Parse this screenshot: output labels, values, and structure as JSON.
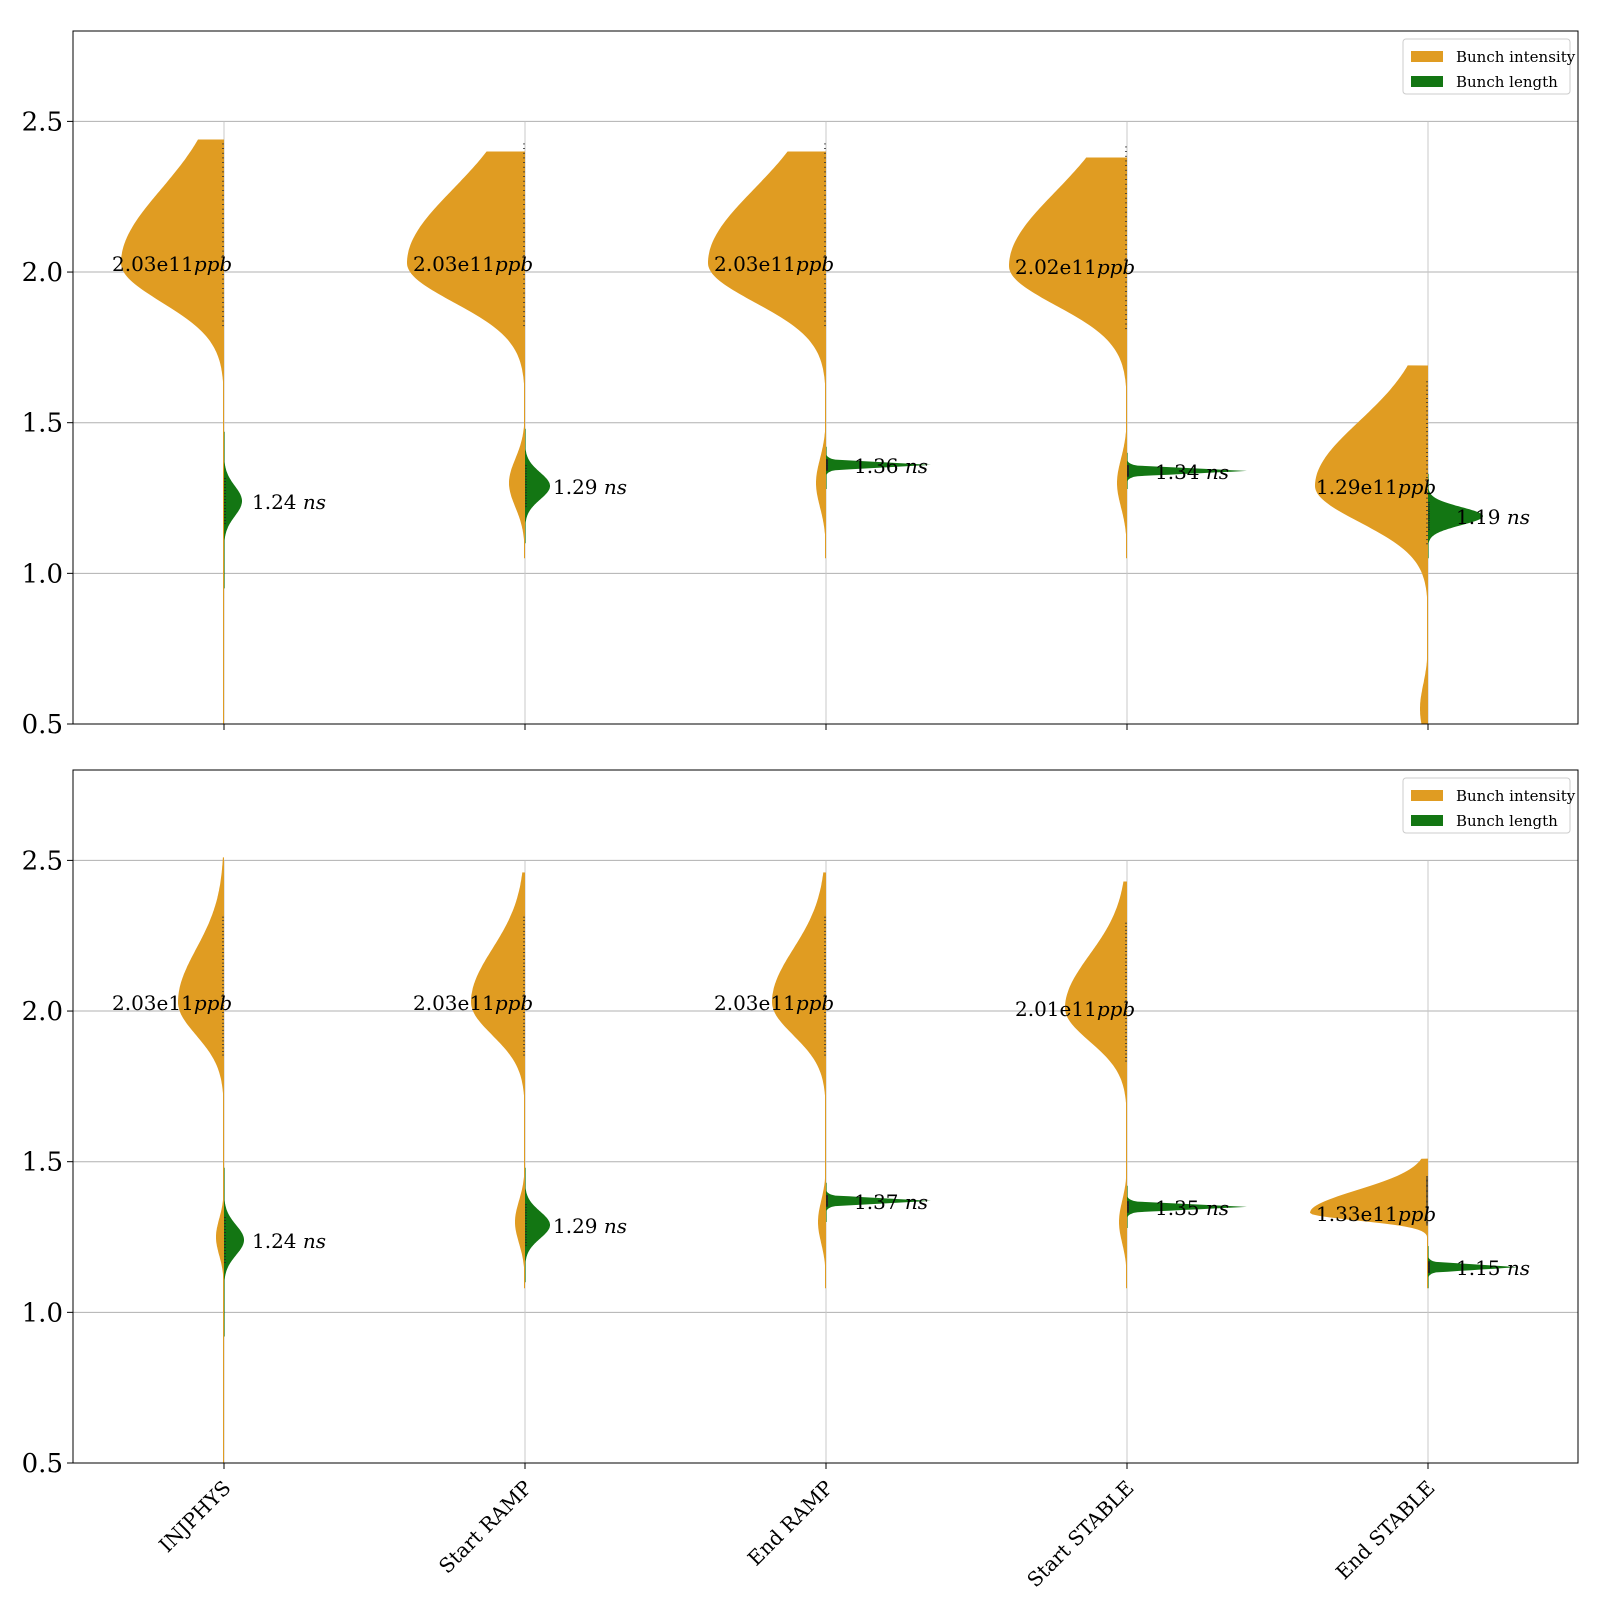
{
  "chart_data": [
    {
      "type": "violin",
      "panel": "top",
      "categories": [
        "INJPHYS",
        "Start RAMP",
        "End RAMP",
        "Start STABLE",
        "End STABLE"
      ],
      "ylim": [
        0.5,
        2.8
      ],
      "yticks": [
        "0.5",
        "1.0",
        "1.5",
        "2.0",
        "2.5"
      ],
      "grid": true,
      "legend_position": "top-right",
      "legend": [
        {
          "label": "Bunch intensity",
          "color": "#e09c22"
        },
        {
          "label": "Bunch length",
          "color": "#137613"
        }
      ],
      "series": [
        {
          "name": "Bunch intensity",
          "side": "left",
          "color": "#e09c22",
          "median": [
            2.03,
            2.03,
            2.03,
            2.02,
            1.29
          ],
          "labels": [
            "2.03e11",
            "2.03e11",
            "2.03e11",
            "2.02e11",
            "1.29e11"
          ],
          "unit": "ppb"
        },
        {
          "name": "Bunch length",
          "side": "right",
          "color": "#137613",
          "median": [
            1.24,
            1.29,
            1.36,
            1.34,
            1.19
          ],
          "labels": [
            "1.24",
            "1.29",
            "1.36",
            "1.34",
            "1.19"
          ],
          "unit": "ns"
        }
      ]
    },
    {
      "type": "violin",
      "panel": "bottom",
      "categories": [
        "INJPHYS",
        "Start RAMP",
        "End RAMP",
        "Start STABLE",
        "End STABLE"
      ],
      "ylim": [
        0.5,
        2.8
      ],
      "yticks": [
        "0.5",
        "1.0",
        "1.5",
        "2.0",
        "2.5"
      ],
      "grid": true,
      "legend_position": "top-right",
      "legend": [
        {
          "label": "Bunch intensity",
          "color": "#e09c22"
        },
        {
          "label": "Bunch length",
          "color": "#137613"
        }
      ],
      "series": [
        {
          "name": "Bunch intensity",
          "side": "left",
          "color": "#e09c22",
          "median": [
            2.03,
            2.03,
            2.03,
            2.01,
            1.33
          ],
          "labels": [
            "2.03e11",
            "2.03e11",
            "2.03e11",
            "2.01e11",
            "1.33e11"
          ],
          "unit": "ppb"
        },
        {
          "name": "Bunch length",
          "side": "right",
          "color": "#137613",
          "median": [
            1.24,
            1.29,
            1.37,
            1.35,
            1.15
          ],
          "labels": [
            "1.24",
            "1.29",
            "1.37",
            "1.35",
            "1.15"
          ],
          "unit": "ns"
        }
      ]
    }
  ]
}
